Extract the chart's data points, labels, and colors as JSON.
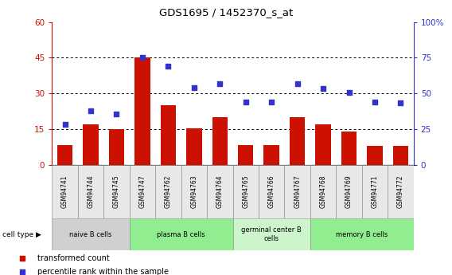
{
  "title": "GDS1695 / 1452370_s_at",
  "samples": [
    "GSM94741",
    "GSM94744",
    "GSM94745",
    "GSM94747",
    "GSM94762",
    "GSM94763",
    "GSM94764",
    "GSM94765",
    "GSM94766",
    "GSM94767",
    "GSM94768",
    "GSM94769",
    "GSM94771",
    "GSM94772"
  ],
  "bar_values": [
    8.5,
    17.0,
    15.0,
    45.0,
    25.0,
    15.5,
    20.0,
    8.5,
    8.5,
    20.0,
    17.0,
    14.0,
    8.0,
    8.0
  ],
  "dot_values": [
    28.5,
    38.0,
    35.5,
    75.5,
    69.0,
    54.0,
    57.0,
    44.0,
    44.0,
    57.0,
    53.5,
    51.0,
    44.0,
    43.5
  ],
  "bar_color": "#cc1100",
  "dot_color": "#3333cc",
  "left_ylim": [
    0,
    60
  ],
  "right_ylim": [
    0,
    100
  ],
  "left_yticks": [
    0,
    15,
    30,
    45,
    60
  ],
  "right_yticks": [
    0,
    25,
    50,
    75,
    100
  ],
  "right_yticklabels": [
    "0",
    "25",
    "50",
    "75",
    "100%"
  ],
  "cell_groups": [
    {
      "label": "naive B cells",
      "start": 0,
      "end": 3,
      "color": "#d0d0d0"
    },
    {
      "label": "plasma B cells",
      "start": 3,
      "end": 7,
      "color": "#90ee90"
    },
    {
      "label": "germinal center B\ncells",
      "start": 7,
      "end": 10,
      "color": "#ccf5cc"
    },
    {
      "label": "memory B cells",
      "start": 10,
      "end": 14,
      "color": "#90ee90"
    }
  ],
  "legend_label_bar": "transformed count",
  "legend_label_dot": "percentile rank within the sample",
  "cell_type_label": "cell type",
  "background_color": "#ffffff"
}
